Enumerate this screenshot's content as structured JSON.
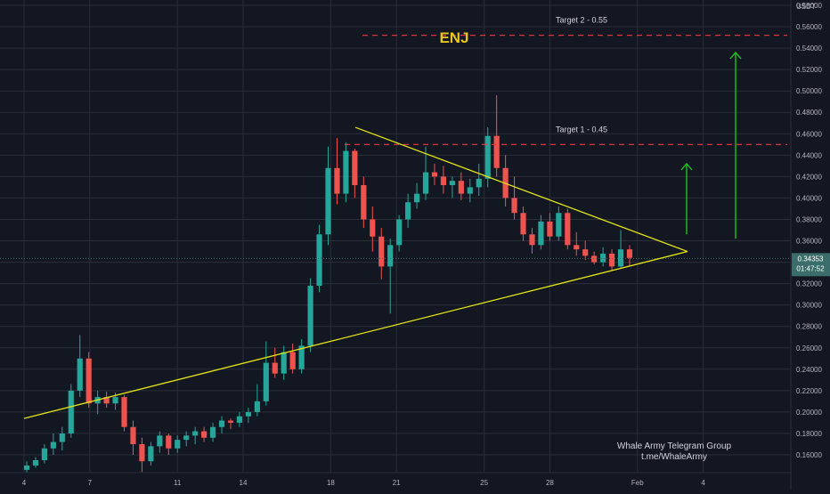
{
  "colors": {
    "background": "#131722",
    "grid": "#2a2e39",
    "axis_text": "#b2b5be",
    "up": "#26a69a",
    "down": "#ef5350",
    "trendline": "#e5e619",
    "target_line": "#f23645",
    "arrow": "#21c021",
    "title": "#e5c619",
    "price_badge": "#3b6e6a"
  },
  "chart_data": {
    "type": "candlestick",
    "title": "ENJ",
    "currency": "USDT",
    "ylim": [
      0.145,
      0.59
    ],
    "y_ticks": [
      "0.58000",
      "0.56000",
      "0.54000",
      "0.52000",
      "0.50000",
      "0.48000",
      "0.46000",
      "0.44000",
      "0.42000",
      "0.40000",
      "0.38000",
      "0.36000",
      "0.34000",
      "0.32000",
      "0.30000",
      "0.28000",
      "0.26000",
      "0.24000",
      "0.22000",
      "0.20000",
      "0.18000",
      "0.16000"
    ],
    "x_ticks": [
      "4",
      "7",
      "11",
      "14",
      "18",
      "21",
      "25",
      "28",
      "Feb",
      "4"
    ],
    "ohlc": [
      [
        0.146,
        0.154,
        0.143,
        0.15
      ],
      [
        0.15,
        0.158,
        0.148,
        0.155
      ],
      [
        0.155,
        0.17,
        0.152,
        0.166
      ],
      [
        0.166,
        0.18,
        0.16,
        0.172
      ],
      [
        0.172,
        0.186,
        0.164,
        0.18
      ],
      [
        0.18,
        0.226,
        0.176,
        0.22
      ],
      [
        0.22,
        0.272,
        0.214,
        0.25
      ],
      [
        0.25,
        0.256,
        0.204,
        0.208
      ],
      [
        0.208,
        0.22,
        0.198,
        0.214
      ],
      [
        0.214,
        0.219,
        0.204,
        0.208
      ],
      [
        0.208,
        0.218,
        0.202,
        0.214
      ],
      [
        0.214,
        0.216,
        0.182,
        0.186
      ],
      [
        0.186,
        0.192,
        0.16,
        0.17
      ],
      [
        0.17,
        0.176,
        0.144,
        0.154
      ],
      [
        0.154,
        0.172,
        0.15,
        0.168
      ],
      [
        0.168,
        0.182,
        0.162,
        0.178
      ],
      [
        0.178,
        0.18,
        0.16,
        0.166
      ],
      [
        0.166,
        0.178,
        0.162,
        0.174
      ],
      [
        0.174,
        0.182,
        0.168,
        0.178
      ],
      [
        0.178,
        0.186,
        0.17,
        0.182
      ],
      [
        0.182,
        0.186,
        0.172,
        0.176
      ],
      [
        0.176,
        0.19,
        0.172,
        0.186
      ],
      [
        0.186,
        0.196,
        0.18,
        0.192
      ],
      [
        0.192,
        0.194,
        0.184,
        0.19
      ],
      [
        0.19,
        0.2,
        0.186,
        0.196
      ],
      [
        0.196,
        0.204,
        0.19,
        0.2
      ],
      [
        0.2,
        0.226,
        0.196,
        0.21
      ],
      [
        0.21,
        0.266,
        0.206,
        0.246
      ],
      [
        0.246,
        0.26,
        0.232,
        0.236
      ],
      [
        0.236,
        0.262,
        0.23,
        0.256
      ],
      [
        0.256,
        0.264,
        0.236,
        0.24
      ],
      [
        0.24,
        0.268,
        0.236,
        0.262
      ],
      [
        0.262,
        0.325,
        0.256,
        0.318
      ],
      [
        0.318,
        0.375,
        0.312,
        0.366
      ],
      [
        0.366,
        0.448,
        0.356,
        0.428
      ],
      [
        0.428,
        0.456,
        0.394,
        0.404
      ],
      [
        0.404,
        0.452,
        0.396,
        0.444
      ],
      [
        0.444,
        0.446,
        0.4,
        0.412
      ],
      [
        0.412,
        0.42,
        0.372,
        0.38
      ],
      [
        0.38,
        0.392,
        0.35,
        0.364
      ],
      [
        0.364,
        0.372,
        0.324,
        0.336
      ],
      [
        0.336,
        0.362,
        0.292,
        0.356
      ],
      [
        0.356,
        0.384,
        0.35,
        0.38
      ],
      [
        0.38,
        0.404,
        0.372,
        0.396
      ],
      [
        0.396,
        0.414,
        0.39,
        0.404
      ],
      [
        0.404,
        0.448,
        0.398,
        0.424
      ],
      [
        0.424,
        0.432,
        0.412,
        0.42
      ],
      [
        0.42,
        0.43,
        0.404,
        0.412
      ],
      [
        0.412,
        0.42,
        0.4,
        0.416
      ],
      [
        0.416,
        0.424,
        0.398,
        0.404
      ],
      [
        0.404,
        0.418,
        0.396,
        0.41
      ],
      [
        0.41,
        0.432,
        0.402,
        0.418
      ],
      [
        0.418,
        0.466,
        0.41,
        0.458
      ],
      [
        0.458,
        0.496,
        0.42,
        0.428
      ],
      [
        0.428,
        0.44,
        0.392,
        0.4
      ],
      [
        0.4,
        0.42,
        0.38,
        0.386
      ],
      [
        0.386,
        0.392,
        0.36,
        0.366
      ],
      [
        0.366,
        0.372,
        0.348,
        0.356
      ],
      [
        0.356,
        0.384,
        0.352,
        0.378
      ],
      [
        0.378,
        0.386,
        0.36,
        0.364
      ],
      [
        0.364,
        0.392,
        0.36,
        0.386
      ],
      [
        0.386,
        0.39,
        0.352,
        0.356
      ],
      [
        0.356,
        0.368,
        0.346,
        0.352
      ],
      [
        0.352,
        0.36,
        0.342,
        0.346
      ],
      [
        0.346,
        0.35,
        0.338,
        0.34
      ],
      [
        0.34,
        0.354,
        0.336,
        0.348
      ],
      [
        0.348,
        0.352,
        0.332,
        0.336
      ],
      [
        0.336,
        0.37,
        0.334,
        0.352
      ],
      [
        0.352,
        0.356,
        0.336,
        0.344
      ]
    ],
    "last_price": "0.34353",
    "countdown": "01:47:52",
    "targets": [
      {
        "label": "Target 2 - 0.55",
        "value": 0.552
      },
      {
        "label": "Target 1 - 0.45",
        "value": 0.45
      }
    ],
    "trendlines": [
      {
        "name": "upper",
        "from": [
          "Jan 19",
          0.466
        ],
        "to": [
          "Feb 3",
          0.35
        ]
      },
      {
        "name": "lower",
        "from": [
          "Jan 4",
          0.194
        ],
        "to": [
          "Feb 3",
          0.35
        ]
      }
    ],
    "arrows": [
      {
        "from": 0.366,
        "to": 0.432
      },
      {
        "from": 0.362,
        "to": 0.536
      }
    ],
    "watermark": [
      "Whale Army Telegram Group",
      "t.me/WhaleArmy"
    ],
    "grid": true
  }
}
